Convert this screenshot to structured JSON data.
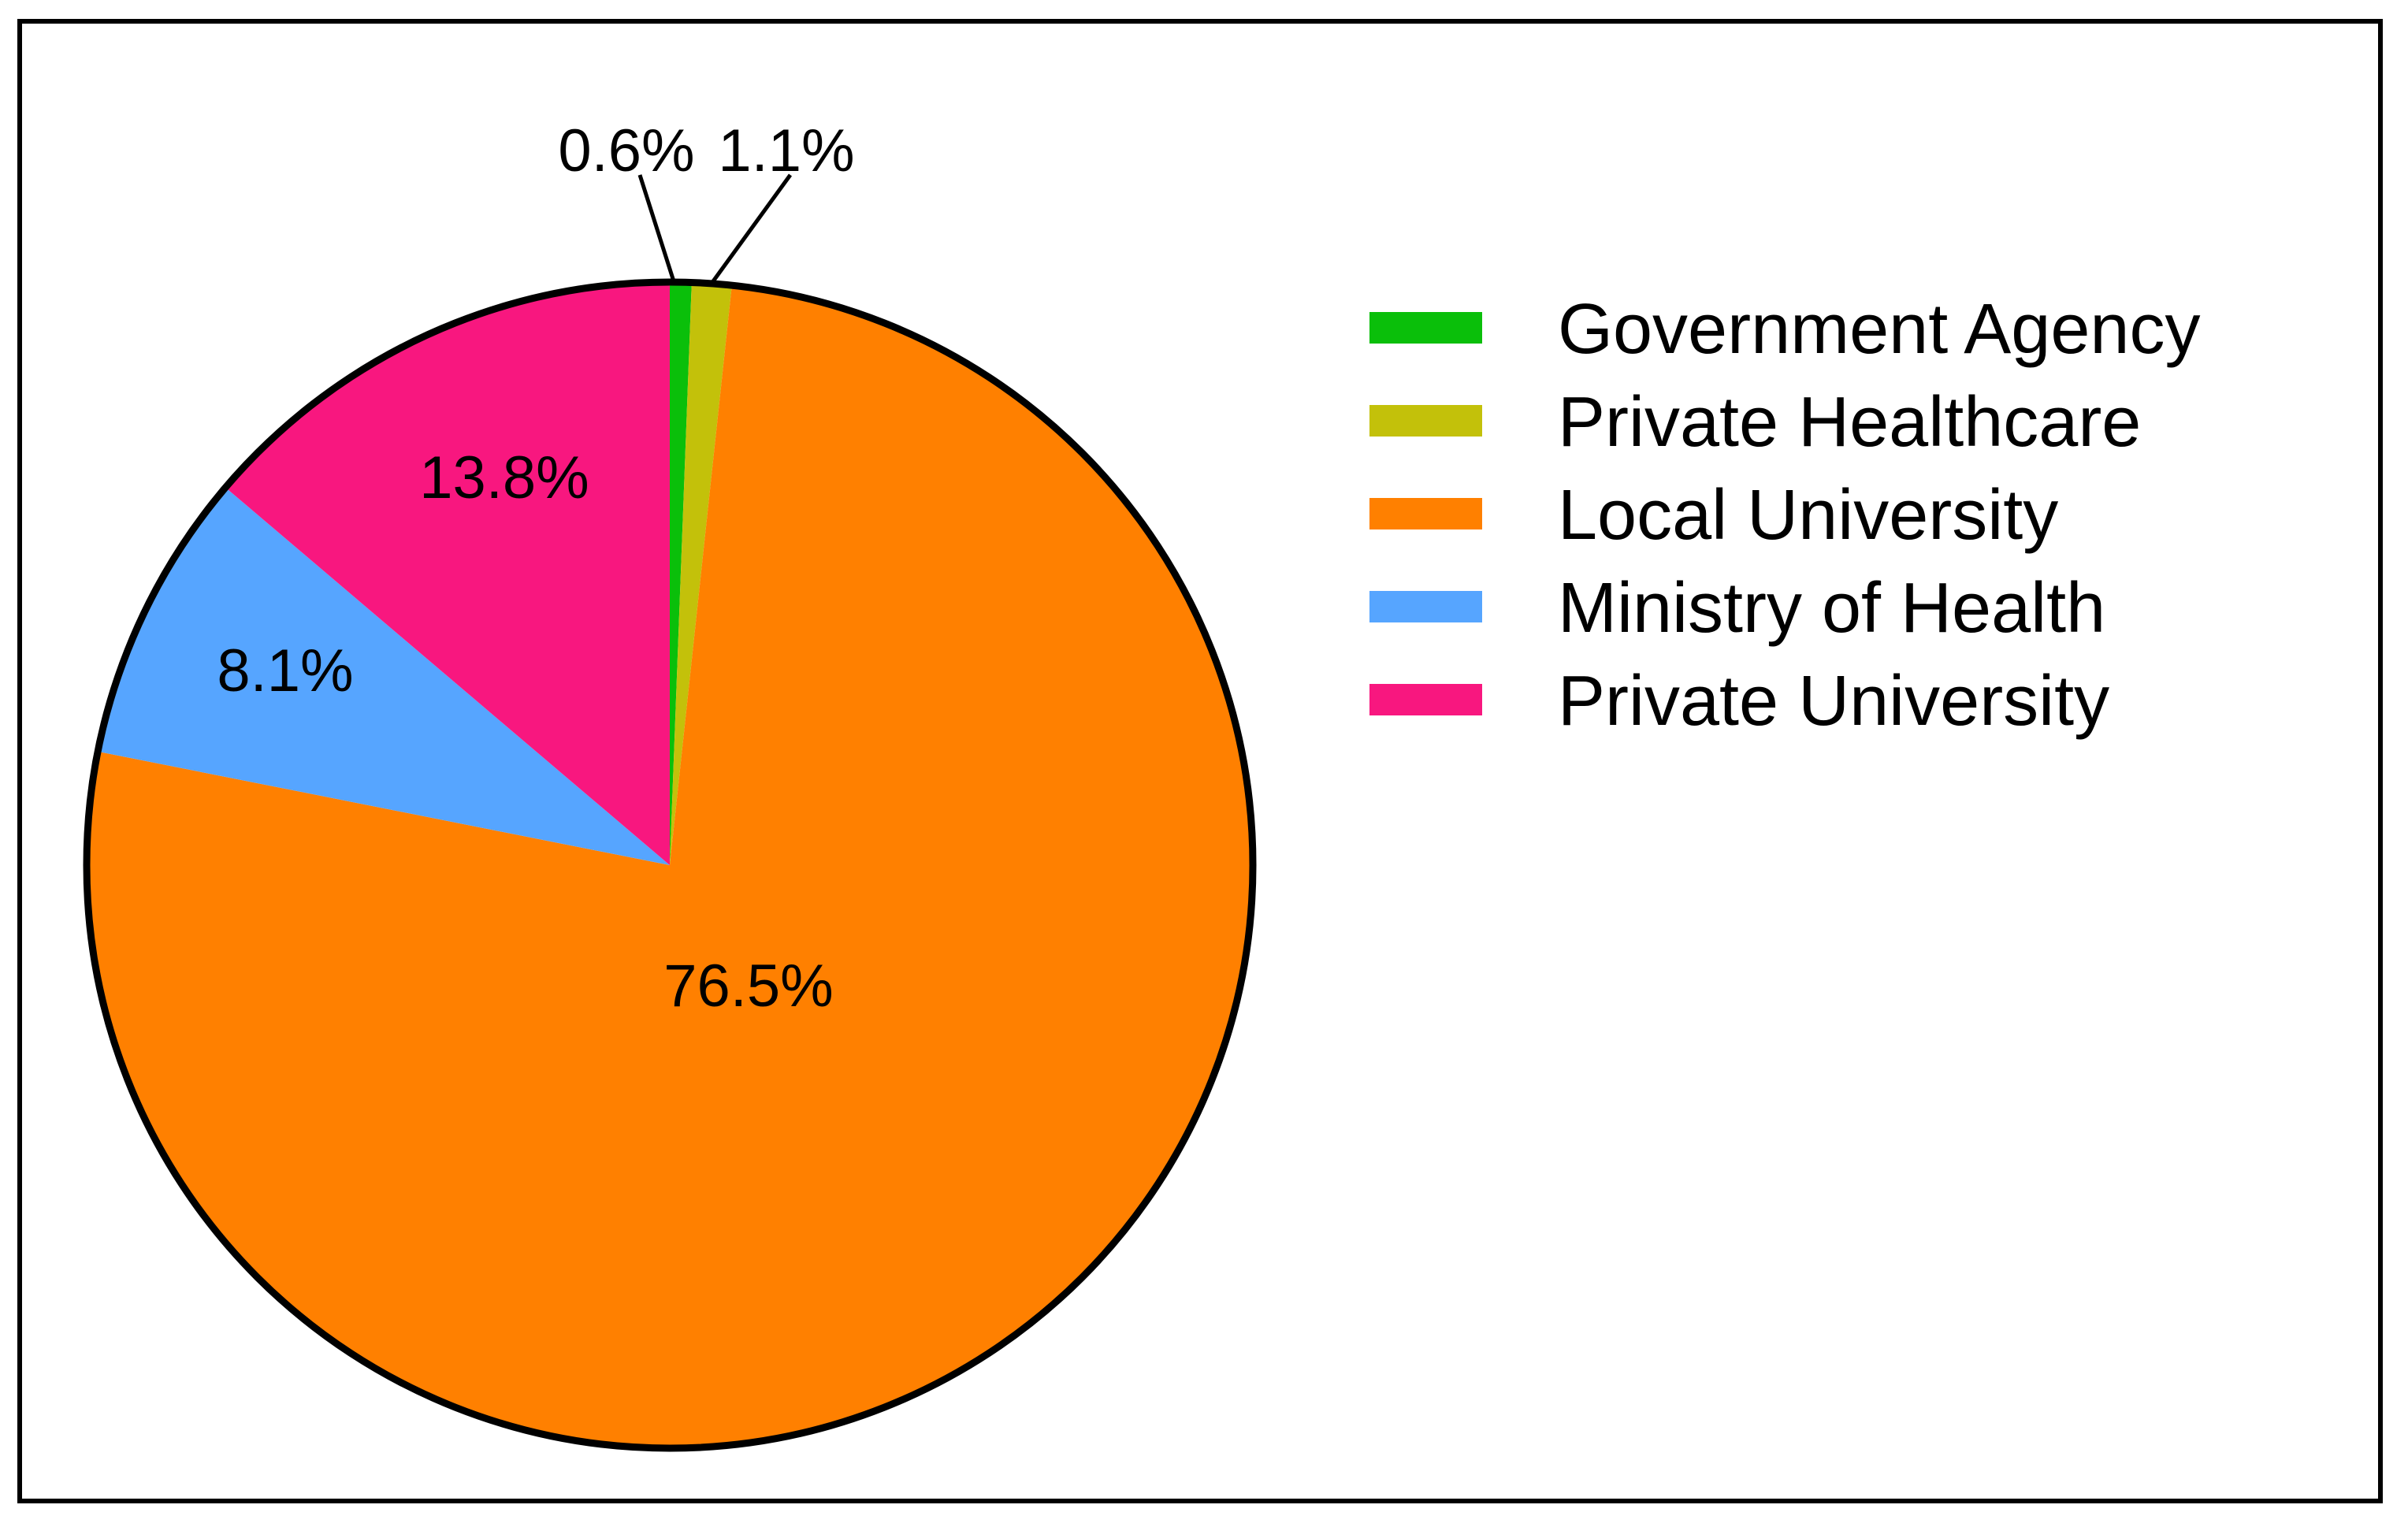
{
  "chart_data": {
    "type": "pie",
    "title": "",
    "start_angle_deg": 0,
    "direction": "clockwise",
    "legend_position": "right",
    "slices": [
      {
        "name": "Government Agency",
        "value": 0.6,
        "label": "0.6%",
        "color": "#0ABF0A",
        "label_placement": "outside"
      },
      {
        "name": "Private Healthcare",
        "value": 1.1,
        "label": "1.1%",
        "color": "#C3C10A",
        "label_placement": "outside"
      },
      {
        "name": "Local University",
        "value": 76.5,
        "label": "76.5%",
        "color": "#FF8000",
        "label_placement": "inside"
      },
      {
        "name": "Ministry of Health",
        "value": 8.1,
        "label": "8.1%",
        "color": "#56A5FF",
        "label_placement": "inside"
      },
      {
        "name": "Private University",
        "value": 13.8,
        "label": "13.8%",
        "color": "#F8177F",
        "label_placement": "inside"
      }
    ]
  }
}
